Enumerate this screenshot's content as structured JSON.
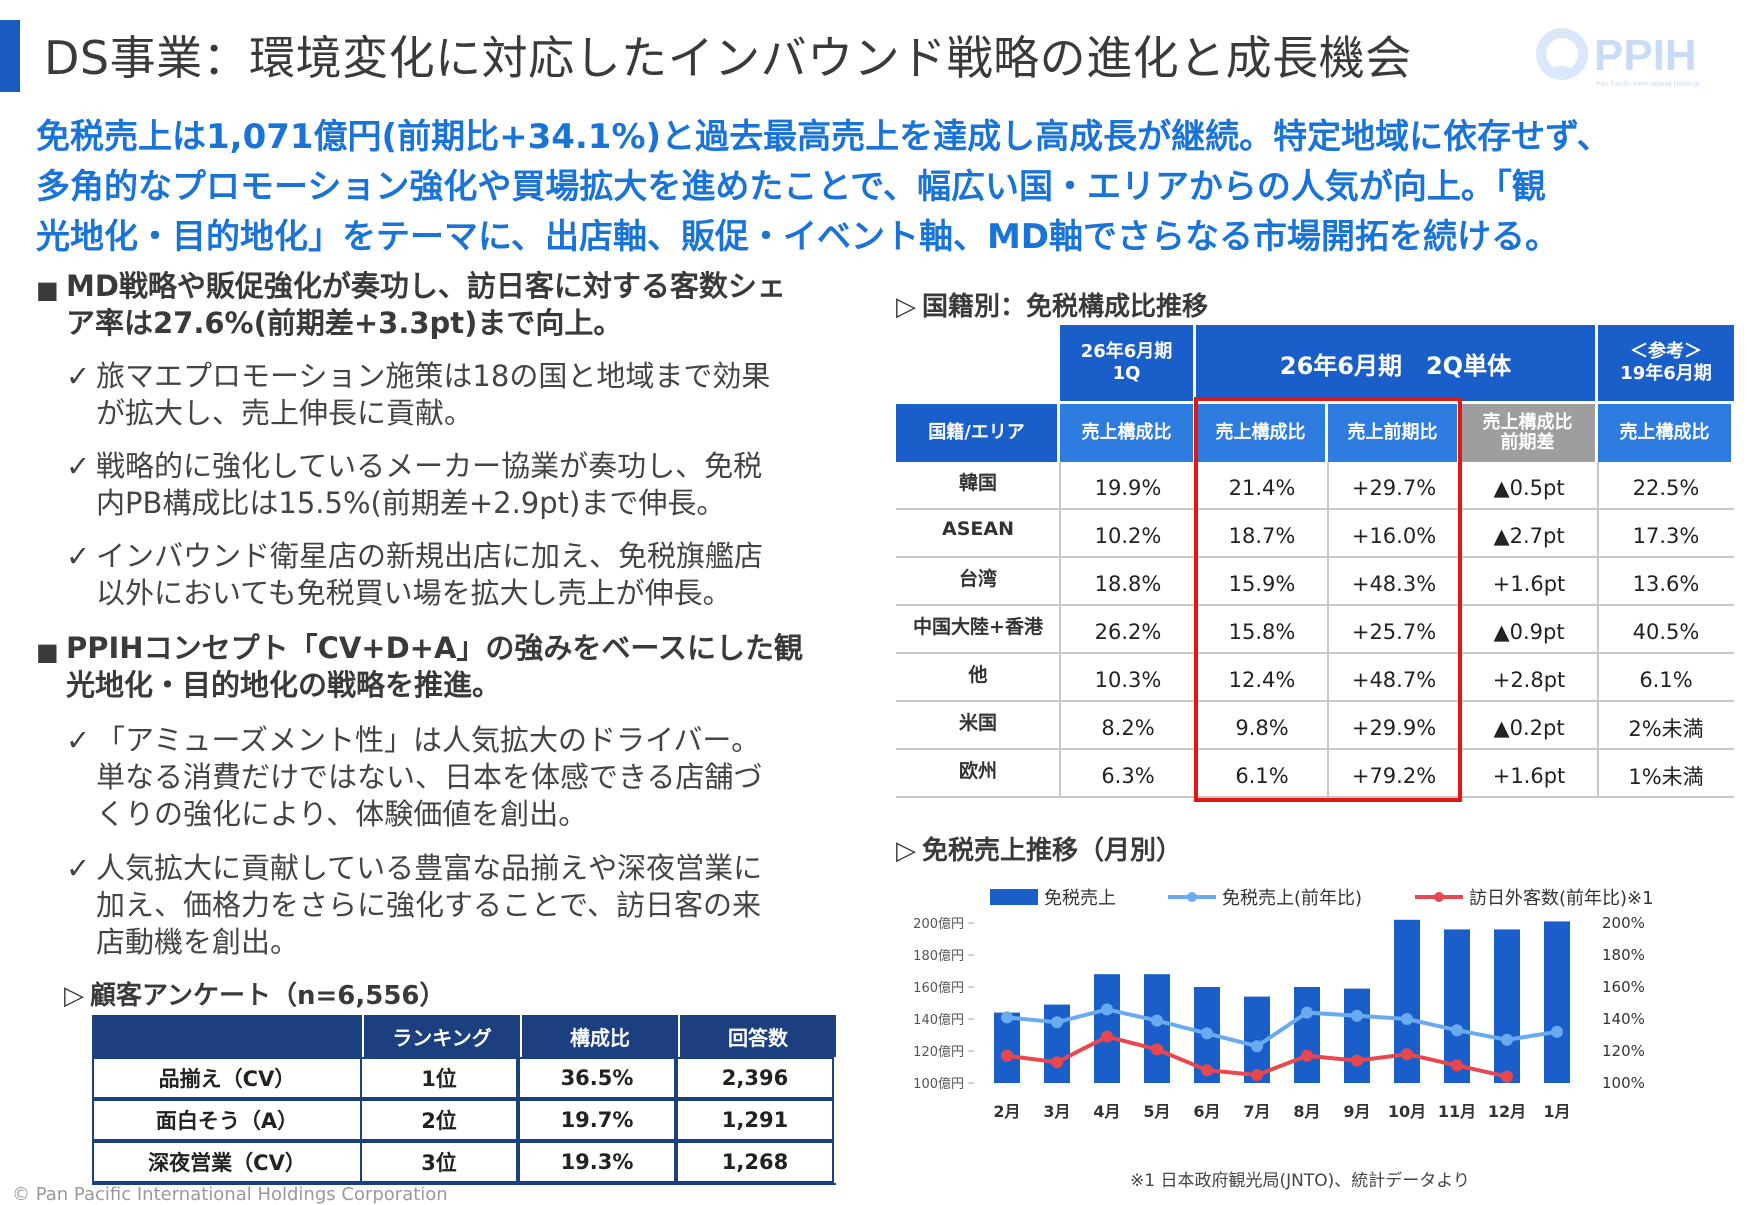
{
  "header": {
    "title": "DS事業：環境変化に対応したインバウンド戦略の進化と成長機会",
    "logo_text": "PPIH",
    "logo_sub": "Pan Pacific International Holdings"
  },
  "lead": [
    "免税売上は1,071億円(前期比+34.1%)と過去最高売上を達成し高成長が継続。特定地域に依存せず、",
    "多角的なプロモーション強化や買場拡大を進めたことで、幅広い国・エリアからの人気が向上。「観",
    "光地化・目的地化」をテーマに、出店軸、販促・イベント軸、MD軸でさらなる市場開拓を続ける。"
  ],
  "left": {
    "bullet1": [
      "MD戦略や販促強化が奏功し、訪日客に対する客数シェ",
      "ア率は27.6%(前期差+3.3pt)まで向上。"
    ],
    "checks1": [
      [
        "旅マエプロモーション施策は18の国と地域まで効果",
        "が拡大し、売上伸長に貢献。"
      ],
      [
        "戦略的に強化しているメーカー協業が奏功し、免税",
        "内PB構成比は15.5%(前期差+2.9pt)まで伸長。"
      ],
      [
        "インバウンド衛星店の新規出店に加え、免税旗艦店",
        "以外においても免税買い場を拡大し売上が伸長。"
      ]
    ],
    "bullet2": [
      "PPIHコンセプト「CV+D+A」の強みをベースにした観",
      "光地化・目的地化の戦略を推進。"
    ],
    "checks2": [
      [
        "「アミューズメント性」は人気拡大のドライバー。",
        "単なる消費だけではない、日本を体感できる店舗づ",
        "くりの強化により、体験価値を創出。"
      ],
      [
        "人気拡大に貢献している豊富な品揃えや深夜営業に",
        "加え、価格力をさらに強化することで、訪日客の来",
        "店動機を創出。"
      ]
    ],
    "check_mark": "✓",
    "bullet_mark": "■"
  },
  "survey": {
    "title": "顧客アンケート（n=6,556）",
    "tri": "▷",
    "headers": [
      "",
      "ランキング",
      "構成比",
      "回答数"
    ],
    "rows": [
      [
        "品揃え（CV）",
        "1位",
        "36.5%",
        "2,396"
      ],
      [
        "面白そう（A）",
        "2位",
        "19.7%",
        "1,291"
      ],
      [
        "深夜営業（CV）",
        "3位",
        "19.3%",
        "1,268"
      ]
    ]
  },
  "nationality": {
    "title": "国籍別：免税構成比推移",
    "tri": "▷",
    "group_headers": {
      "q1": [
        "26年6月期",
        "1Q"
      ],
      "q2": "26年6月期　2Q単体",
      "ref": [
        "＜参考＞",
        "19年6月期"
      ]
    },
    "col_headers": [
      "国籍/エリア",
      "売上構成比",
      "売上構成比",
      "売上前期比",
      "売上構成比\n前期差",
      "売上構成比"
    ],
    "rows": [
      [
        "韓国",
        "19.9%",
        "21.4%",
        "+29.7%",
        "▲0.5pt",
        "22.5%"
      ],
      [
        "ASEAN",
        "10.2%",
        "18.7%",
        "+16.0%",
        "▲2.7pt",
        "17.3%"
      ],
      [
        "台湾",
        "18.8%",
        "15.9%",
        "+48.3%",
        "+1.6pt",
        "13.6%"
      ],
      [
        "中国大陸+香港",
        "26.2%",
        "15.8%",
        "+25.7%",
        "▲0.9pt",
        "40.5%"
      ],
      [
        "他",
        "10.3%",
        "12.4%",
        "+48.7%",
        "+2.8pt",
        "6.1%"
      ],
      [
        "米国",
        "8.2%",
        "9.8%",
        "+29.9%",
        "▲0.2pt",
        "2%未満"
      ],
      [
        "欧州",
        "6.3%",
        "6.1%",
        "+79.2%",
        "+1.6pt",
        "1%未満"
      ]
    ]
  },
  "monthly": {
    "title": "免税売上推移（月別）",
    "tri": "▷",
    "footnote": "※1 日本政府観光局(JNTO)、統計データより",
    "colors": {
      "bar": "#1a5fc9",
      "line_yoy": "#6aaaf0",
      "line_visitors": "#e8474f"
    }
  },
  "chart_data": {
    "type": "bar",
    "categories": [
      "2月",
      "3月",
      "4月",
      "5月",
      "6月",
      "7月",
      "8月",
      "9月",
      "10月",
      "11月",
      "12月",
      "1月"
    ],
    "series": [
      {
        "name": "免税売上",
        "type": "bar",
        "axis": "left",
        "values": [
          144,
          149,
          168,
          168,
          160,
          154,
          160,
          159,
          202,
          196,
          196,
          201
        ]
      },
      {
        "name": "免税売上(前年比)",
        "type": "line",
        "axis": "right",
        "values": [
          141,
          138,
          146,
          139,
          131,
          123,
          144,
          142,
          140,
          133,
          127,
          132
        ]
      },
      {
        "name": "訪日外客数(前年比)※1",
        "type": "line",
        "axis": "right",
        "values": [
          117,
          113,
          129,
          121,
          108,
          105,
          117,
          114,
          118,
          111,
          104,
          null
        ]
      }
    ],
    "ylabel_left_ticks": [
      "100億円",
      "120億円",
      "140億円",
      "160億円",
      "180億円",
      "200億円"
    ],
    "ylabel_right_ticks": [
      "100%",
      "120%",
      "140%",
      "160%",
      "180%",
      "200%"
    ],
    "ylim_left": [
      100,
      200
    ],
    "ylim_right": [
      100,
      200
    ],
    "grid": false,
    "legend": "top"
  },
  "copyright": "© Pan Pacific International Holdings Corporation"
}
